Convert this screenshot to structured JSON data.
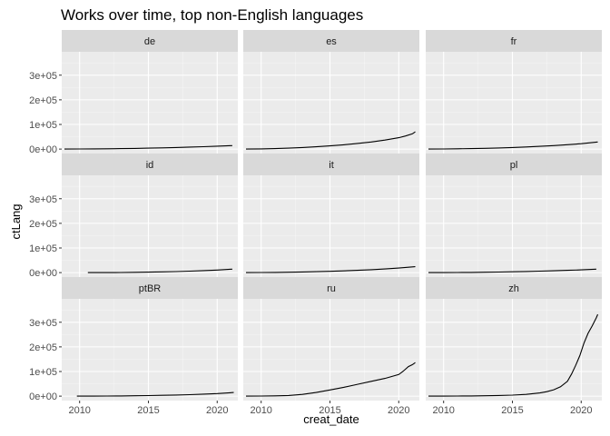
{
  "chart_data": {
    "type": "line",
    "title": "Works over time, top non-English languages",
    "xlabel": "creat_date",
    "ylabel": "ctLang",
    "xlim": [
      2008.7,
      2021.5
    ],
    "ylim": [
      -18000,
      395000
    ],
    "x_ticks": [
      2010,
      2015,
      2020
    ],
    "x_tick_labels": [
      "2010",
      "2015",
      "2020"
    ],
    "y_ticks": [
      0,
      100000,
      200000,
      300000
    ],
    "y_tick_labels": [
      "0e+00",
      "1e+05",
      "2e+05",
      "3e+05"
    ],
    "layout": "facet_wrap 3x3, shared axes",
    "grid": true,
    "colors": {
      "panel_bg": "#ebebeb",
      "strip_bg": "#d9d9d9",
      "grid_major": "#ffffff",
      "line": "#000000"
    },
    "panels": [
      {
        "name": "de",
        "x": [
          2008.9,
          2010,
          2011,
          2012,
          2013,
          2014,
          2015,
          2016,
          2017,
          2018,
          2019,
          2020,
          2021.1
        ],
        "y": [
          0,
          300,
          700,
          1200,
          2000,
          2800,
          3800,
          5000,
          6400,
          8000,
          9800,
          11800,
          14000
        ]
      },
      {
        "name": "es",
        "x": [
          2008.9,
          2010,
          2011,
          2012,
          2013,
          2014,
          2015,
          2016,
          2017,
          2018,
          2019,
          2020,
          2020.5,
          2021,
          2021.2
        ],
        "y": [
          0,
          800,
          2000,
          3800,
          6200,
          9200,
          13000,
          17500,
          23000,
          29000,
          36500,
          46000,
          53000,
          62000,
          70000
        ]
      },
      {
        "name": "fr",
        "x": [
          2008.9,
          2010,
          2011,
          2012,
          2013,
          2014,
          2015,
          2016,
          2017,
          2018,
          2019,
          2020,
          2021.2
        ],
        "y": [
          0,
          400,
          1000,
          1800,
          3000,
          4500,
          6300,
          8500,
          11000,
          14000,
          17800,
          22000,
          29000
        ]
      },
      {
        "name": "id",
        "x": [
          2010.6,
          2012,
          2013,
          2014,
          2015,
          2016,
          2017,
          2018,
          2019,
          2020,
          2021.1
        ],
        "y": [
          0,
          200,
          500,
          1000,
          1800,
          2900,
          4300,
          6000,
          8000,
          10500,
          14000
        ]
      },
      {
        "name": "it",
        "x": [
          2008.9,
          2010,
          2011,
          2012,
          2013,
          2014,
          2015,
          2016,
          2017,
          2018,
          2019,
          2020,
          2021.2
        ],
        "y": [
          0,
          300,
          800,
          1500,
          2500,
          3700,
          5200,
          7000,
          9200,
          11800,
          14800,
          18500,
          24000
        ]
      },
      {
        "name": "pl",
        "x": [
          2008.9,
          2010,
          2011,
          2012,
          2013,
          2014,
          2015,
          2016,
          2017,
          2018,
          2019,
          2020,
          2021.1
        ],
        "y": [
          0,
          200,
          500,
          900,
          1500,
          2300,
          3300,
          4500,
          5900,
          7500,
          9300,
          11200,
          14000
        ]
      },
      {
        "name": "ptBR",
        "x": [
          2009.8,
          2011,
          2012,
          2013,
          2014,
          2015,
          2016,
          2017,
          2018,
          2019,
          2020,
          2021.2
        ],
        "y": [
          0,
          200,
          500,
          900,
          1500,
          2300,
          3300,
          4600,
          6100,
          8000,
          10500,
          15000
        ]
      },
      {
        "name": "ru",
        "x": [
          2008.9,
          2010,
          2011,
          2012,
          2013,
          2014,
          2015,
          2016,
          2017,
          2018,
          2019,
          2020,
          2020.3,
          2020.7,
          2021,
          2021.2
        ],
        "y": [
          0,
          300,
          1000,
          2500,
          7000,
          15000,
          25000,
          36000,
          48000,
          60000,
          72000,
          88000,
          100000,
          120000,
          128000,
          136000
        ]
      },
      {
        "name": "zh",
        "x": [
          2008.9,
          2010,
          2011,
          2012,
          2013,
          2014,
          2015,
          2016,
          2017,
          2017.5,
          2018,
          2018.5,
          2019,
          2019.3,
          2019.6,
          2019.9,
          2020.2,
          2020.5,
          2020.8,
          2021.1,
          2021.2
        ],
        "y": [
          0,
          200,
          500,
          900,
          1500,
          2500,
          4000,
          7000,
          13000,
          18000,
          26000,
          38000,
          60000,
          90000,
          125000,
          165000,
          215000,
          255000,
          285000,
          318000,
          332000
        ]
      }
    ]
  }
}
